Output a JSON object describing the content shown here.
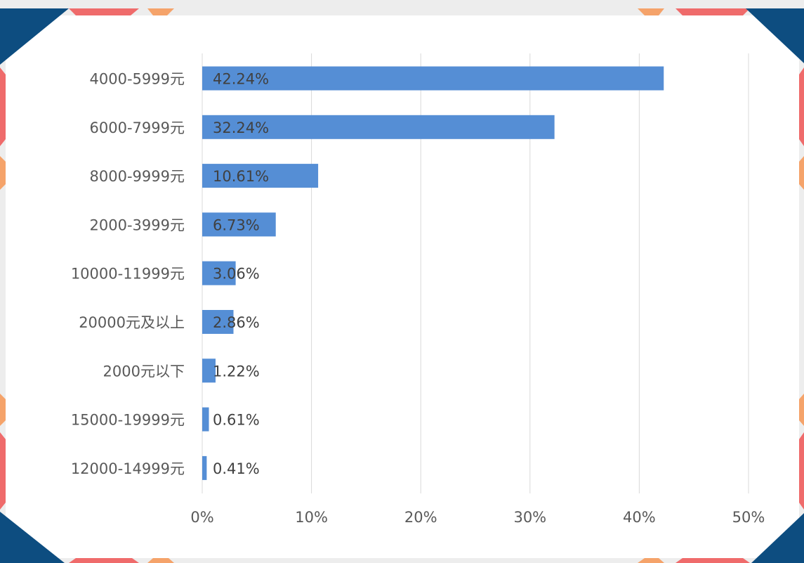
{
  "chart_data": {
    "type": "bar",
    "orientation": "horizontal",
    "title": "",
    "xlabel": "",
    "ylabel": "",
    "categories": [
      "4000-5999元",
      "6000-7999元",
      "8000-9999元",
      "2000-3999元",
      "10000-11999元",
      "20000元及以上",
      "2000元以下",
      "15000-19999元",
      "12000-14999元"
    ],
    "values": [
      42.24,
      32.24,
      10.61,
      6.73,
      3.06,
      2.86,
      1.22,
      0.61,
      0.41
    ],
    "data_labels": [
      "42.24%",
      "32.24%",
      "10.61%",
      "6.73%",
      "3.06%",
      "2.86%",
      "1.22%",
      "0.61%",
      "0.41%"
    ],
    "x_ticks": [
      "0%",
      "10%",
      "20%",
      "30%",
      "40%",
      "50%"
    ],
    "xlim": [
      0,
      50
    ],
    "grid": "vertical",
    "legend": "none",
    "bar_color": "#558ed5",
    "gridline_color": "#d9d9d9",
    "label_color": "#595959"
  },
  "frame": {
    "corner_color": "#0d4d80",
    "accent_red": "#ef6b6b",
    "accent_orange": "#f5a36a",
    "background": "#ffffff"
  }
}
